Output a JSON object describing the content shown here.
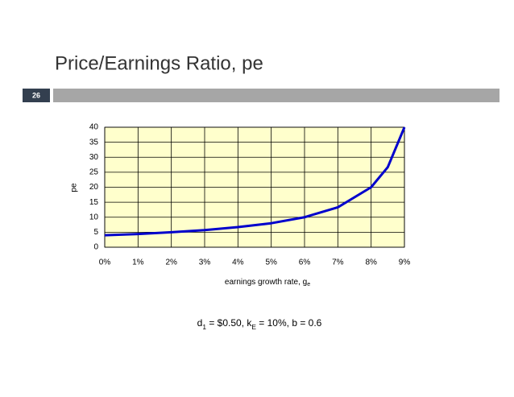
{
  "slide": {
    "title": "Price/Earnings Ratio, pe",
    "number": "26"
  },
  "chart_data": {
    "type": "line",
    "x": [
      0,
      1,
      2,
      3,
      4,
      5,
      6,
      7,
      8,
      8.5,
      9
    ],
    "series": [
      {
        "name": "pe",
        "color": "#0000cc",
        "values": [
          4,
          4.4,
          5,
          5.7,
          6.7,
          8,
          10,
          13.3,
          20,
          26.7,
          40
        ]
      }
    ],
    "xlim": [
      0,
      9
    ],
    "xticks": [
      {
        "value": 0,
        "label": "0%"
      },
      {
        "value": 1,
        "label": "1%"
      },
      {
        "value": 2,
        "label": "2%"
      },
      {
        "value": 3,
        "label": "3%"
      },
      {
        "value": 4,
        "label": "4%"
      },
      {
        "value": 5,
        "label": "5%"
      },
      {
        "value": 6,
        "label": "6%"
      },
      {
        "value": 7,
        "label": "7%"
      },
      {
        "value": 8,
        "label": "8%"
      },
      {
        "value": 9,
        "label": "9%"
      }
    ],
    "ylim": [
      0,
      40
    ],
    "yticks": [
      0,
      5,
      10,
      15,
      20,
      25,
      30,
      35,
      40
    ],
    "ylabel": "pe",
    "xlabel": [
      "earnings growth rate, g",
      "e"
    ],
    "grid": true,
    "plot_background": "#ffffcc",
    "annotation": [
      "d",
      "1",
      " = $0.50,   k",
      "E",
      " = 10%, b = 0.6"
    ]
  }
}
